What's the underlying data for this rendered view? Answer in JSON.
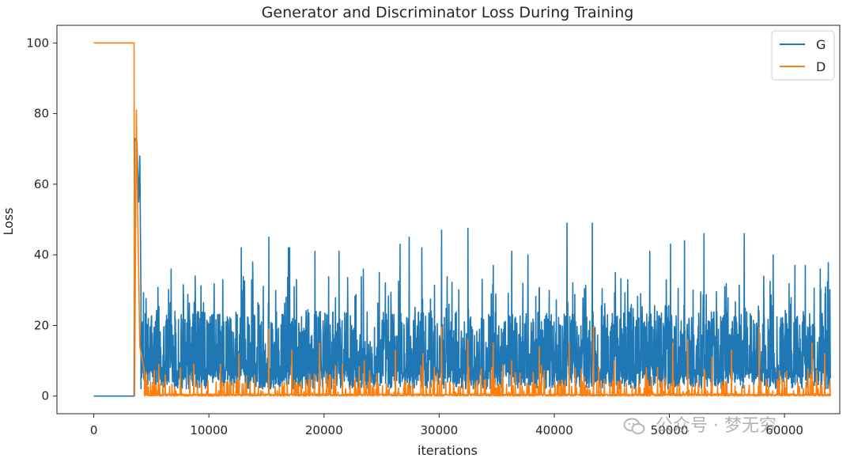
{
  "chart_data": {
    "type": "line",
    "title": "Generator and Discriminator Loss During Training",
    "xlabel": "iterations",
    "ylabel": "Loss",
    "xlim": [
      -3200,
      64800
    ],
    "ylim": [
      -5,
      105
    ],
    "x_ticks": [
      0,
      10000,
      20000,
      30000,
      40000,
      50000,
      60000
    ],
    "y_ticks": [
      0,
      20,
      40,
      60,
      80,
      100
    ],
    "legend_position": "top-right",
    "grid": false,
    "series": [
      {
        "name": "G",
        "color": "#1f77b4",
        "description_points": [
          [
            0,
            0
          ],
          [
            3500,
            0
          ],
          [
            3550,
            73
          ],
          [
            3750,
            72
          ],
          [
            3900,
            55
          ],
          [
            4000,
            68
          ],
          [
            4100,
            28
          ]
        ],
        "noise_band": {
          "x_start": 4100,
          "x_end": 64000,
          "low": 2,
          "high": 24,
          "spike_max": 49
        },
        "spikes": [
          [
            6700,
            36
          ],
          [
            8800,
            34
          ],
          [
            11200,
            33
          ],
          [
            12800,
            42
          ],
          [
            13800,
            38
          ],
          [
            15200,
            45
          ],
          [
            16900,
            42
          ],
          [
            17000,
            42
          ],
          [
            19200,
            41
          ],
          [
            21300,
            41
          ],
          [
            23400,
            36
          ],
          [
            24800,
            35
          ],
          [
            26600,
            43
          ],
          [
            27400,
            45
          ],
          [
            28500,
            42
          ],
          [
            30200,
            47
          ],
          [
            32500,
            47.5
          ],
          [
            34700,
            37
          ],
          [
            36300,
            41
          ],
          [
            37700,
            40
          ],
          [
            41100,
            49
          ],
          [
            43300,
            49
          ],
          [
            45300,
            35
          ],
          [
            48300,
            41
          ],
          [
            50100,
            43
          ],
          [
            51300,
            44
          ],
          [
            53000,
            46
          ],
          [
            56500,
            46
          ],
          [
            59000,
            40
          ],
          [
            60900,
            37
          ],
          [
            61800,
            37
          ],
          [
            63100,
            36
          ],
          [
            63800,
            37.8
          ]
        ]
      },
      {
        "name": "D",
        "color": "#ff7f0e",
        "description_points": [
          [
            0,
            100
          ],
          [
            3500,
            100
          ],
          [
            3550,
            0
          ],
          [
            3700,
            81
          ],
          [
            3800,
            55
          ],
          [
            4000,
            14
          ],
          [
            4400,
            7
          ]
        ],
        "noise_band": {
          "x_start": 4400,
          "x_end": 64000,
          "low": 0,
          "high": 3,
          "spike_max": 19.5
        },
        "spikes": [
          [
            6200,
            6
          ],
          [
            8700,
            9
          ],
          [
            11000,
            9
          ],
          [
            12600,
            12
          ],
          [
            15200,
            19
          ],
          [
            17200,
            13
          ],
          [
            19600,
            15
          ],
          [
            21600,
            9
          ],
          [
            23500,
            10
          ],
          [
            26200,
            13
          ],
          [
            28600,
            12
          ],
          [
            30200,
            19.5
          ],
          [
            32500,
            16
          ],
          [
            34700,
            15
          ],
          [
            36300,
            10
          ],
          [
            38700,
            14
          ],
          [
            41300,
            15
          ],
          [
            43400,
            19.5
          ],
          [
            45200,
            10
          ],
          [
            48000,
            8
          ],
          [
            50300,
            15
          ],
          [
            51600,
            16
          ],
          [
            53700,
            11
          ],
          [
            55400,
            13
          ],
          [
            57800,
            19.5
          ],
          [
            60200,
            7
          ],
          [
            62400,
            15
          ],
          [
            63500,
            12
          ]
        ]
      }
    ]
  },
  "watermark": {
    "text": "公众号 · 梦无穷"
  }
}
